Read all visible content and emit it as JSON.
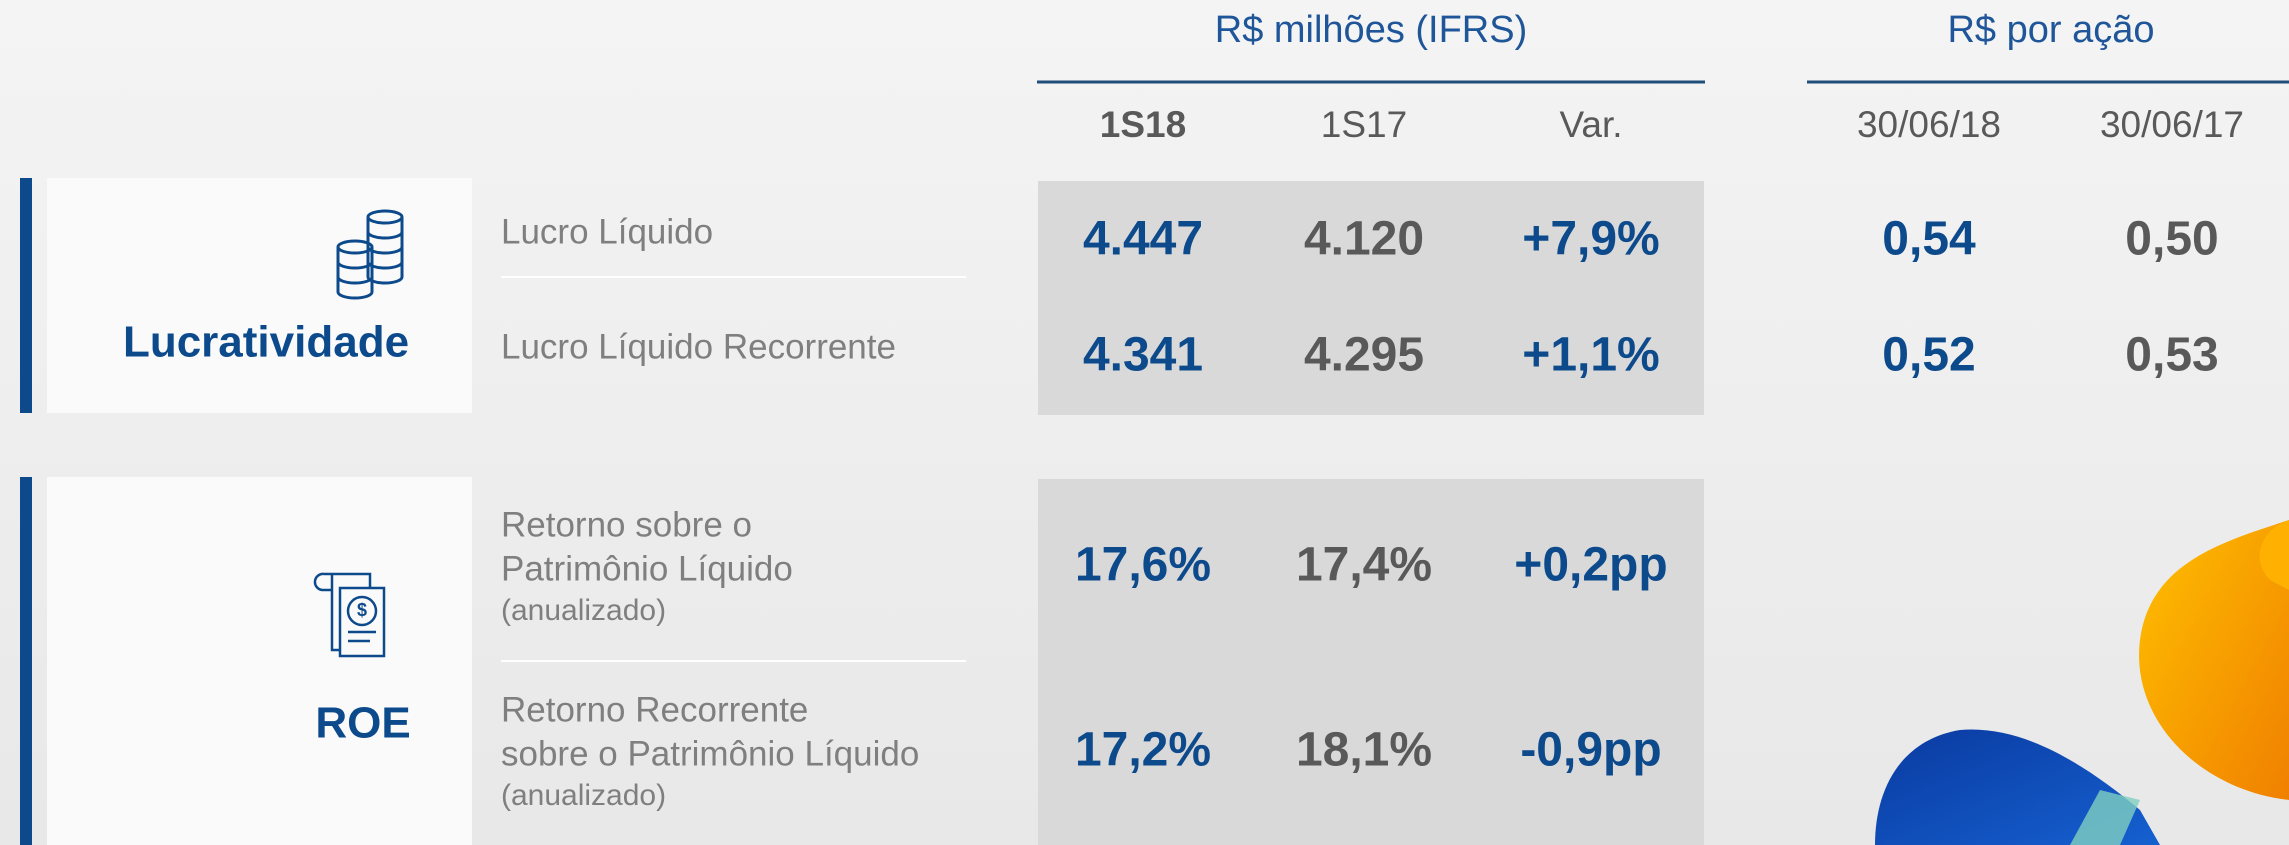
{
  "header": {
    "group1": "R$ milhões (IFRS)",
    "group2": "R$ por ação",
    "columns": [
      "1S18",
      "1S17",
      "Var.",
      "30/06/18",
      "30/06/17"
    ]
  },
  "sections": [
    {
      "title": "Lucratividade",
      "rows": [
        {
          "label": [
            "Lucro Líquido"
          ],
          "values": [
            "4.447",
            "4.120",
            "+7,9%",
            "0,54",
            "0,50"
          ]
        },
        {
          "label": [
            "Lucro Líquido Recorrente"
          ],
          "values": [
            "4.341",
            "4.295",
            "+1,1%",
            "0,52",
            "0,53"
          ]
        }
      ]
    },
    {
      "title": "ROE",
      "rows": [
        {
          "label": [
            "Retorno sobre o",
            "Patrimônio Líquido"
          ],
          "note": "(anualizado)",
          "values": [
            "17,6%",
            "17,4%",
            "+0,2pp"
          ]
        },
        {
          "label": [
            "Retorno Recorrente",
            "sobre o Patrimônio Líquido"
          ],
          "note": "(anualizado)",
          "values": [
            "17,2%",
            "18,1%",
            "-0,9pp"
          ]
        }
      ]
    }
  ]
}
